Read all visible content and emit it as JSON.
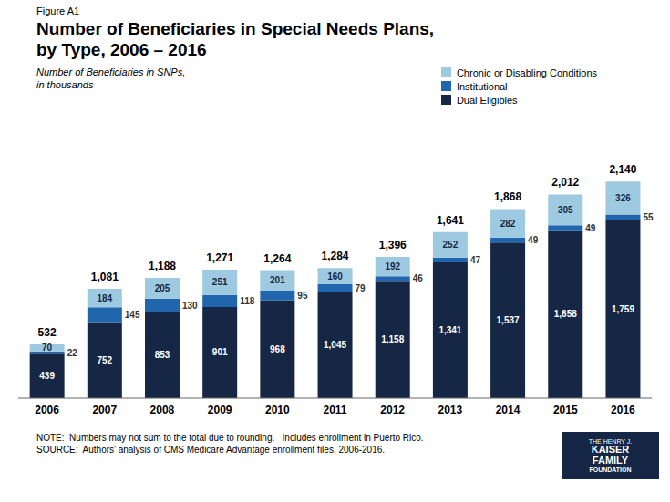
{
  "chart_data": {
    "type": "bar",
    "stacked": true,
    "title": "Number of Beneficiaries in Special Needs Plans,\nby Type, 2006 – 2016",
    "ylabel": "Number of Beneficiaries in SNPs,\nin thousands",
    "annotations": [
      "Figure A1",
      "NOTE:  Numbers may not sum to the total due to rounding.   Includes enrollment in Puerto Rico.",
      "SOURCE:  Authors’ analysis of CMS Medicare Advantage enrollment files, 2006-2016.",
      "THE HENRY J.",
      "KAISER",
      "FAMILY",
      "FOUNDATION"
    ],
    "categories": [
      "2006",
      "2007",
      "2008",
      "2009",
      "2010",
      "2011",
      "2012",
      "2013",
      "2014",
      "2015",
      "2016"
    ],
    "series": [
      {
        "name": "Dual Eligibles",
        "color": "#152744",
        "values": [
          439,
          752,
          853,
          901,
          968,
          1045,
          1158,
          1341,
          1537,
          1658,
          1759
        ],
        "value_labels": [
          "439",
          "752",
          "853",
          "901",
          "968",
          "1,045",
          "1,158",
          "1,341",
          "1,537",
          "1,658",
          "1,759"
        ]
      },
      {
        "name": "Institutional",
        "color": "#2166ac",
        "values": [
          22,
          145,
          130,
          118,
          95,
          79,
          46,
          47,
          49,
          49,
          55
        ]
      },
      {
        "name": "Chronic or Disabling Conditions",
        "color": "#9ecae1",
        "values": [
          70,
          184,
          205,
          251,
          201,
          160,
          192,
          252,
          282,
          305,
          326
        ]
      }
    ],
    "totals": {
      "values": [
        532,
        1081,
        1188,
        1271,
        1264,
        1284,
        1396,
        1641,
        1868,
        2012,
        2140
      ],
      "value_labels": [
        "532",
        "1,081",
        "1,188",
        "1,271",
        "1,264",
        "1,284",
        "1,396",
        "1,641",
        "1,868",
        "2,012",
        "2,140"
      ]
    },
    "ylim": [
      0,
      2700
    ],
    "tick_labels": "x",
    "grid": false,
    "legend": "right",
    "data_labels": true
  }
}
